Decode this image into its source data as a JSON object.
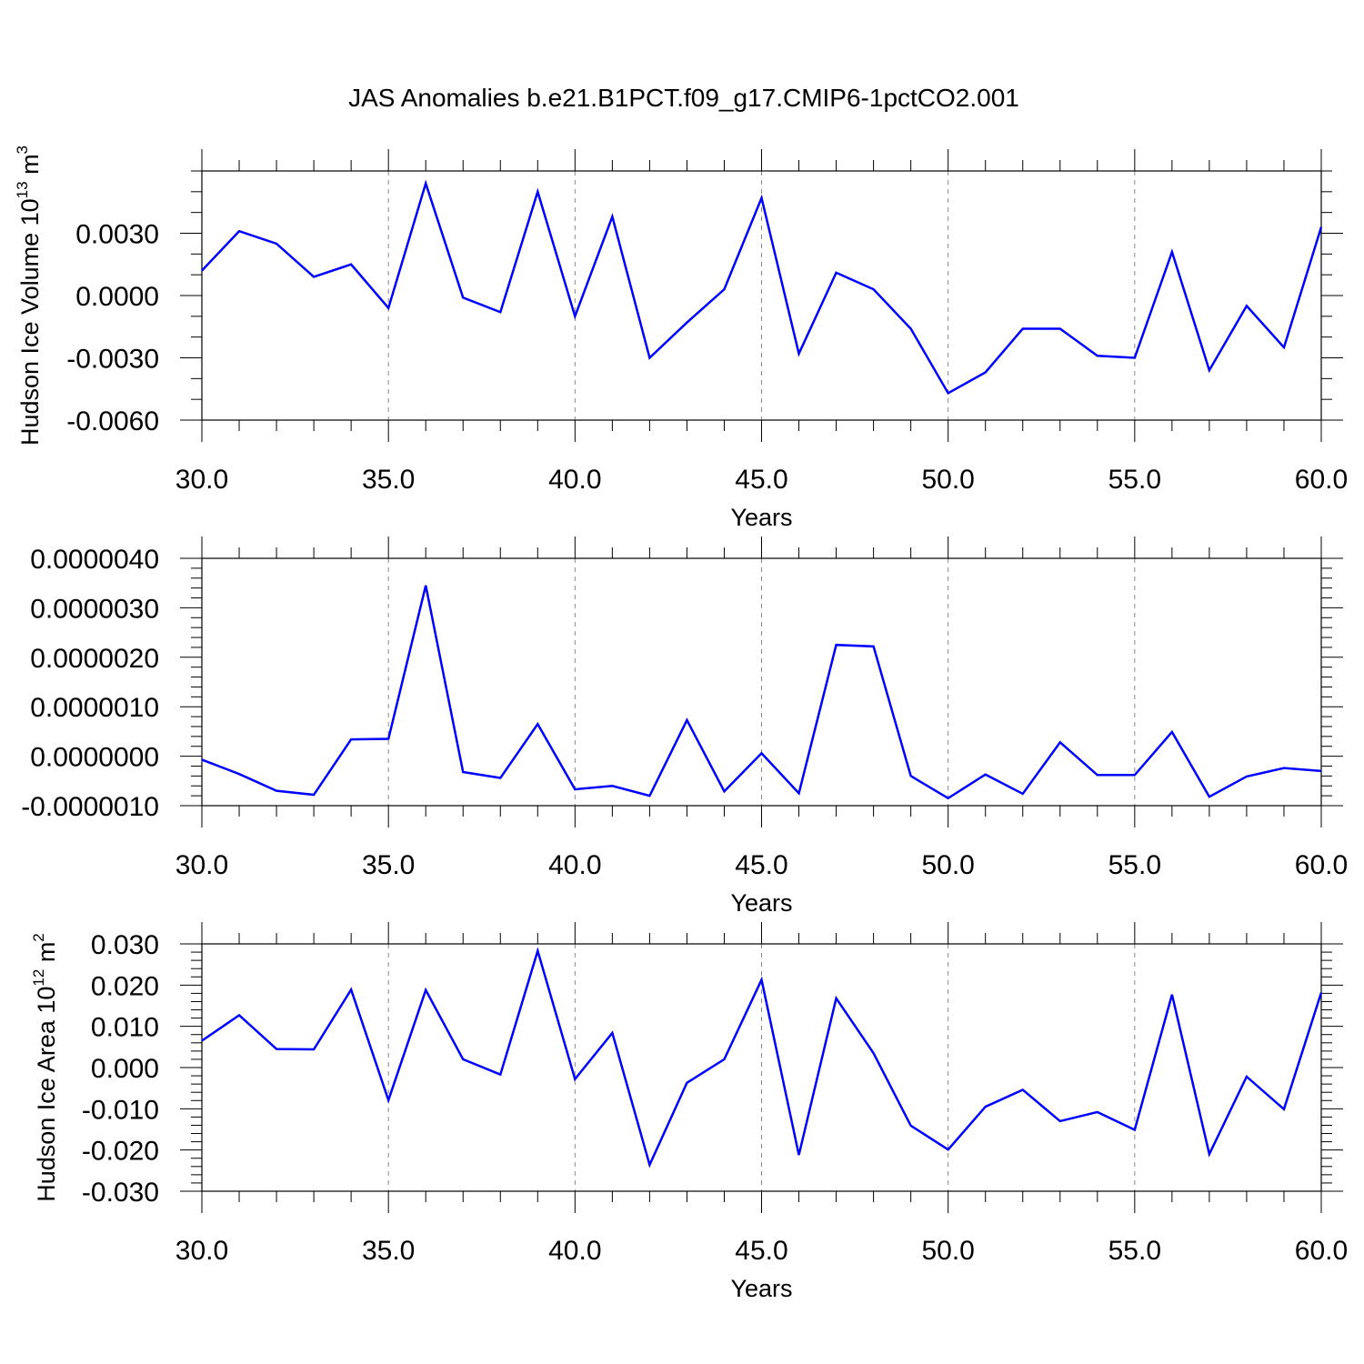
{
  "title": "JAS Anomalies b.e21.B1PCT.f09_g17.CMIP6-1pctCO2.001",
  "colors": {
    "series": "#0000ff",
    "axis": "#000000",
    "grid": "#888888"
  },
  "chart_data": [
    {
      "type": "line",
      "ylabel": "Hudson Ice Volume 10",
      "ylabel_exp": "13",
      "ylabel_unit": " m",
      "ylabel_unit_exp": "3",
      "xlabel": "Years",
      "xlim": [
        30,
        60
      ],
      "ylim": [
        -0.006,
        0.006
      ],
      "xticks": [
        30,
        35,
        40,
        45,
        50,
        55,
        60
      ],
      "xtick_labels": [
        "30.0",
        "35.0",
        "40.0",
        "45.0",
        "50.0",
        "55.0",
        "60.0"
      ],
      "yticks": [
        0.003,
        0.0,
        -0.003,
        -0.006
      ],
      "ytick_labels": [
        "0.0030",
        "0.0000",
        "-0.0030",
        "-0.0060"
      ],
      "grid": "vertical dashed at major x ticks",
      "x": [
        30,
        31,
        32,
        33,
        34,
        35,
        36,
        37,
        38,
        39,
        40,
        41,
        42,
        43,
        44,
        45,
        46,
        47,
        48,
        49,
        50,
        51,
        52,
        53,
        54,
        55,
        56,
        57,
        58,
        59,
        60
      ],
      "y": [
        0.0012,
        0.0031,
        0.0025,
        0.0009,
        0.0015,
        -0.0006,
        0.0054,
        -0.0001,
        -0.0008,
        0.005,
        -0.001,
        0.0038,
        -0.003,
        -0.0013,
        0.0003,
        0.0047,
        -0.0028,
        0.0011,
        0.0003,
        -0.0016,
        -0.0047,
        -0.0037,
        -0.0016,
        -0.0016,
        -0.0029,
        -0.003,
        0.0021,
        -0.0036,
        -0.0005,
        -0.0025,
        0.0033
      ]
    },
    {
      "type": "line",
      "ylabel": "",
      "xlabel": "Years",
      "xlim": [
        30,
        60
      ],
      "ylim": [
        -1e-06,
        4e-06
      ],
      "xticks": [
        30,
        35,
        40,
        45,
        50,
        55,
        60
      ],
      "xtick_labels": [
        "30.0",
        "35.0",
        "40.0",
        "45.0",
        "50.0",
        "55.0",
        "60.0"
      ],
      "yticks": [
        4e-06,
        3e-06,
        2e-06,
        1e-06,
        0.0,
        -1e-06
      ],
      "ytick_labels": [
        "0.0000040",
        "0.0000030",
        "0.0000020",
        "0.0000010",
        "0.0000000",
        "-0.0000010"
      ],
      "grid": "vertical dashed at major x ticks",
      "x": [
        30,
        31,
        32,
        33,
        34,
        35,
        36,
        37,
        38,
        39,
        40,
        41,
        42,
        43,
        44,
        45,
        46,
        47,
        48,
        49,
        50,
        51,
        52,
        53,
        54,
        55,
        56,
        57,
        58,
        59,
        60
      ],
      "y": [
        -7e-08,
        -3.6e-07,
        -7e-07,
        -7.8e-07,
        3.4e-07,
        3.5e-07,
        3.45e-06,
        -3.2e-07,
        -4.4e-07,
        6.5e-07,
        -6.7e-07,
        -6e-07,
        -8e-07,
        7.3e-07,
        -7.1e-07,
        6e-08,
        -7.5e-07,
        2.25e-06,
        2.22e-06,
        -4e-07,
        -8.5e-07,
        -3.7e-07,
        -7.6e-07,
        2.8e-07,
        -3.8e-07,
        -3.8e-07,
        4.9e-07,
        -8.2e-07,
        -4.1e-07,
        -2.4e-07,
        -3e-07
      ]
    },
    {
      "type": "line",
      "ylabel": "Hudson Ice Area 10",
      "ylabel_exp": "12",
      "ylabel_unit": " m",
      "ylabel_unit_exp": "2",
      "xlabel": "Years",
      "xlim": [
        30,
        60
      ],
      "ylim": [
        -0.03,
        0.03
      ],
      "xticks": [
        30,
        35,
        40,
        45,
        50,
        55,
        60
      ],
      "xtick_labels": [
        "30.0",
        "35.0",
        "40.0",
        "45.0",
        "50.0",
        "55.0",
        "60.0"
      ],
      "yticks": [
        0.03,
        0.02,
        0.01,
        0.0,
        -0.01,
        -0.02,
        -0.03
      ],
      "ytick_labels": [
        "0.030",
        "0.020",
        "0.010",
        "0.000",
        "-0.010",
        "-0.020",
        "-0.030"
      ],
      "grid": "vertical dashed at major x ticks",
      "x": [
        30,
        31,
        32,
        33,
        34,
        35,
        36,
        37,
        38,
        39,
        40,
        41,
        42,
        43,
        44,
        45,
        46,
        47,
        48,
        49,
        50,
        51,
        52,
        53,
        54,
        55,
        56,
        57,
        58,
        59,
        60
      ],
      "y": [
        0.0065,
        0.0127,
        0.0045,
        0.0044,
        0.0189,
        -0.0079,
        0.0188,
        0.002,
        -0.0017,
        0.0283,
        -0.0028,
        0.0084,
        -0.0236,
        -0.0037,
        0.002,
        0.0213,
        -0.0212,
        0.0168,
        0.0035,
        -0.0141,
        -0.0199,
        -0.0095,
        -0.0054,
        -0.013,
        -0.0108,
        -0.0151,
        0.0177,
        -0.021,
        -0.0022,
        -0.0101,
        0.0182
      ]
    }
  ]
}
